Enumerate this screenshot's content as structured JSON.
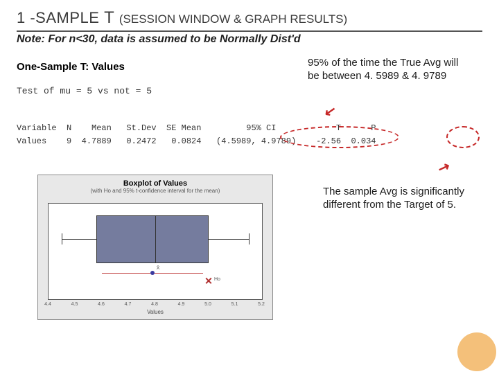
{
  "title": {
    "prefix": "1 -SAMPLE",
    "big": "T",
    "sub": "(SESSION WINDOW & GRAPH RESULTS)"
  },
  "note": "Note:  For n<30, data is assumed to be Normally Dist'd",
  "session": {
    "heading": "One-Sample T: Values",
    "testline": "Test of mu = 5 vs not = 5",
    "table_header": "Variable  N    Mean   St.Dev  SE Mean         95% CI            T      P",
    "table_row": "Values    9  4.7889   0.2472   0.0824   (4.5989, 4.9789)    -2.56  0.034"
  },
  "annotations": {
    "ci": "95% of the time the True Avg will be between 4. 5989 & 4. 9789",
    "p": "The sample Avg is significantly different from the Target of 5."
  },
  "boxplot": {
    "title": "Boxplot of Values",
    "subtitle": "(with Ho and 95% t-confidence interval for the mean)",
    "xlabel": "Values",
    "xmin": 4.4,
    "xmax": 5.2,
    "xticks": [
      4.4,
      4.5,
      4.6,
      4.7,
      4.8,
      4.9,
      5.0,
      5.1,
      5.2
    ],
    "q1": 4.58,
    "median": 4.8,
    "q3": 5.0,
    "whisker_lo": 4.45,
    "whisker_hi": 5.15,
    "mean": 4.7889,
    "ci_lo": 4.5989,
    "ci_hi": 4.9789,
    "target": 5.0,
    "box_fill": "#757c9e",
    "panel_bg": "#e8e8e8",
    "legend_x": "X̄",
    "legend_h": "Ho"
  },
  "colors": {
    "accent_red": "#c62828",
    "corner": "#f4c07a",
    "rule": "#555555"
  }
}
